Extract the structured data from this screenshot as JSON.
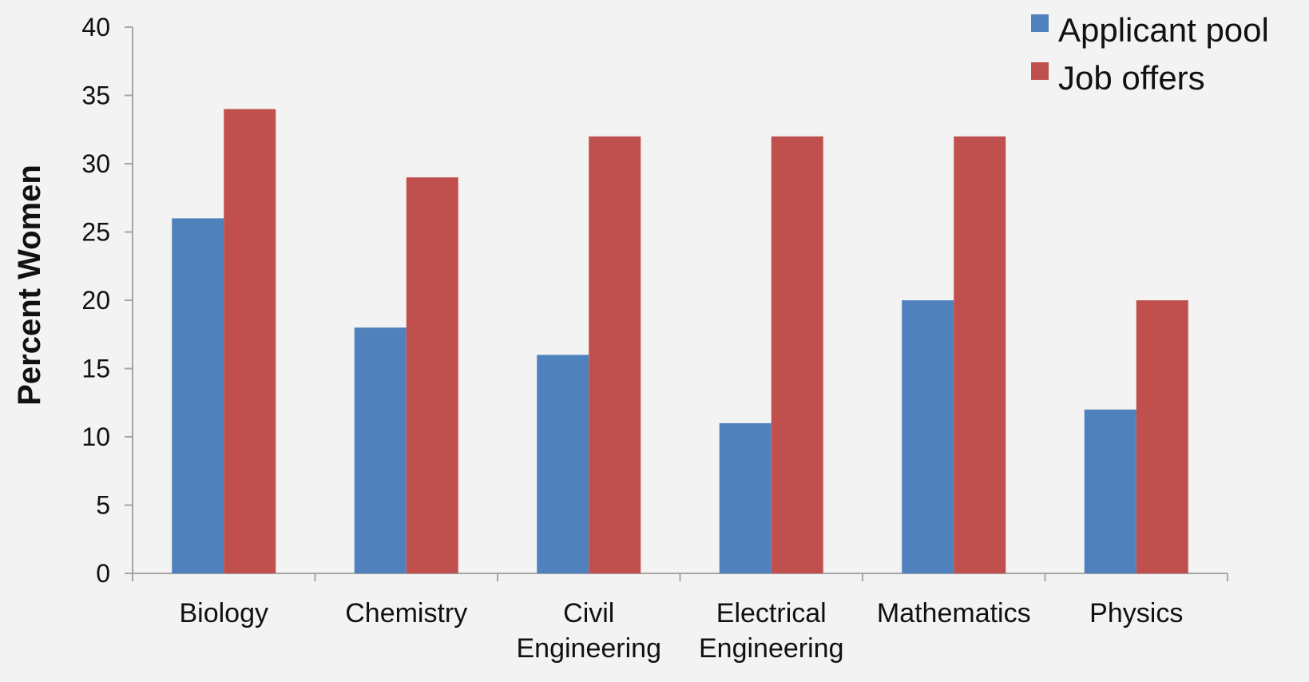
{
  "chart_data": {
    "type": "bar",
    "categories": [
      [
        "Biology"
      ],
      [
        "Chemistry"
      ],
      [
        "Civil",
        "Engineering"
      ],
      [
        "Electrical",
        "Engineering"
      ],
      [
        "Mathematics"
      ],
      [
        "Physics"
      ]
    ],
    "series": [
      {
        "name": "Applicant pool",
        "color": "#4f81bd",
        "values": [
          26,
          18,
          16,
          11,
          20,
          12
        ]
      },
      {
        "name": "Job offers",
        "color": "#c0504d",
        "values": [
          34,
          29,
          32,
          32,
          32,
          20
        ]
      }
    ],
    "ylabel": "Percent Women",
    "xlabel": "",
    "ylim": [
      0,
      40
    ],
    "yticks": [
      0,
      5,
      10,
      15,
      20,
      25,
      30,
      35,
      40
    ],
    "legend_position": "top-right",
    "grid": false,
    "axis_color": "#a6a6a6"
  }
}
